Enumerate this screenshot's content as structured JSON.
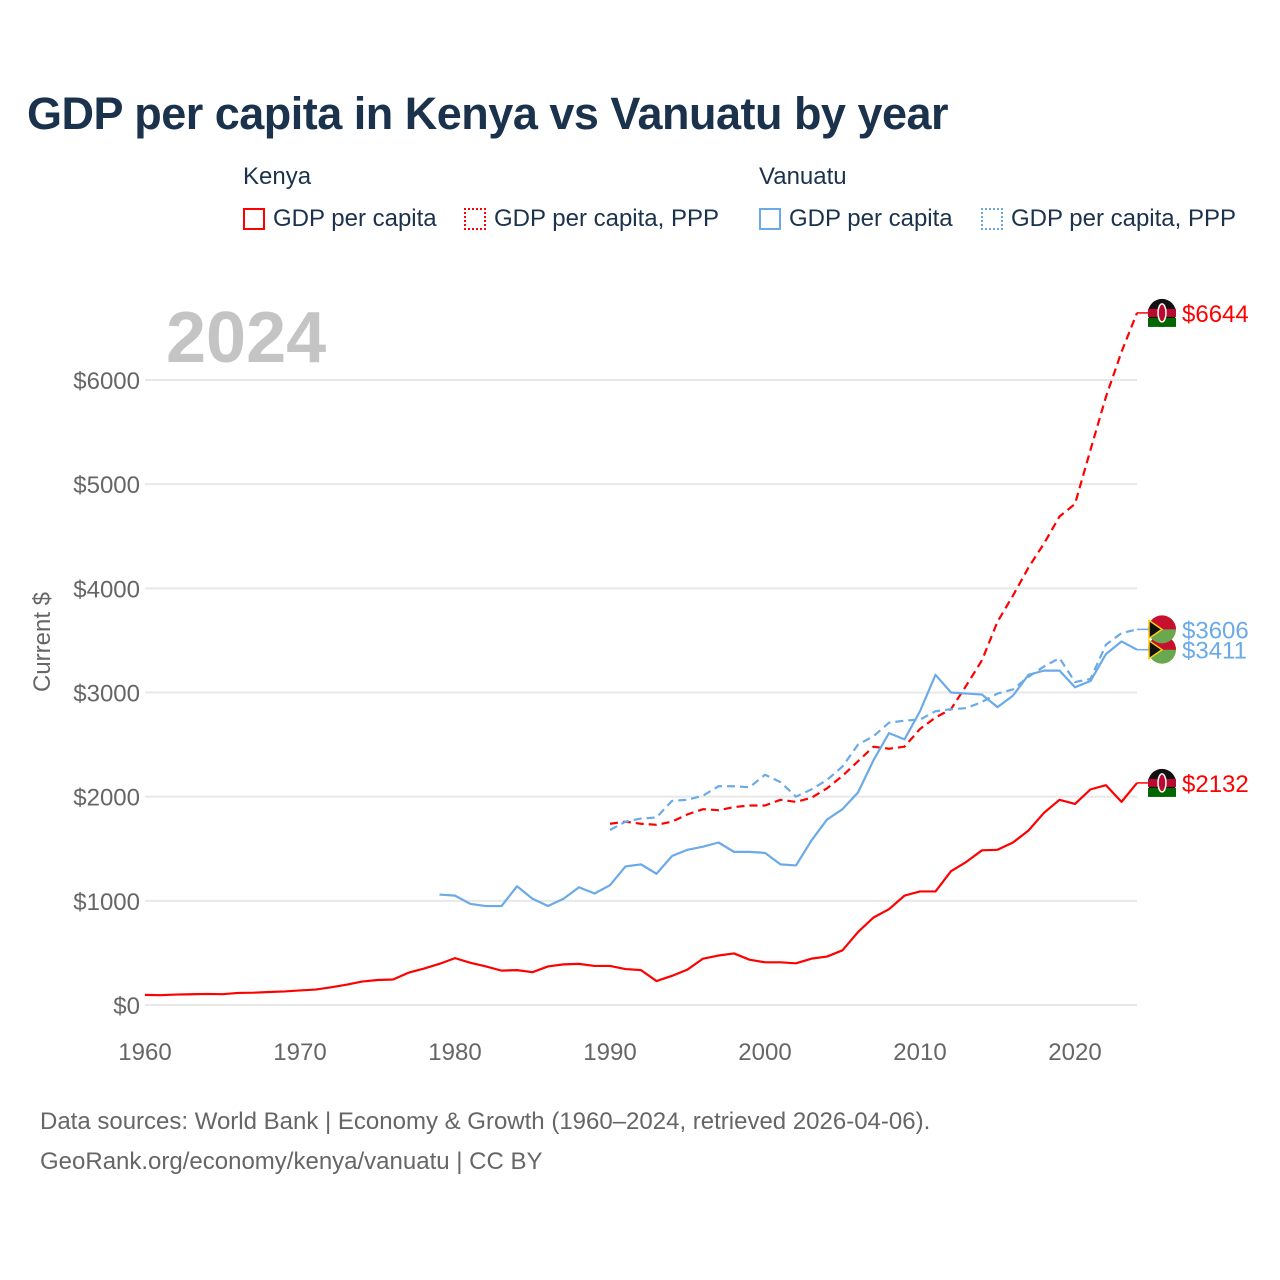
{
  "title": "GDP per capita in Kenya vs Vanuatu by year",
  "legend": {
    "groups": [
      "Kenya",
      "Vanuatu"
    ],
    "items": [
      "GDP per capita",
      "GDP per capita, PPP",
      "GDP per capita",
      "GDP per capita, PPP"
    ]
  },
  "year_label": "2024",
  "footer": {
    "line1": "Data sources: World Bank | Economy & Growth (1960–2024, retrieved 2026-04-06).",
    "line2": "GeoRank.org/economy/kenya/vanuatu | CC BY"
  },
  "colors": {
    "kenya": "#ff0000",
    "vanuatu": "#6aaae8"
  },
  "chart_data": {
    "type": "line",
    "title": "GDP per capita in Kenya vs Vanuatu by year",
    "ylabel": "Current $",
    "xlim": [
      1960,
      2024
    ],
    "ylim": [
      0,
      6000
    ],
    "xticks": [
      1960,
      1970,
      1980,
      1990,
      2000,
      2010,
      2020
    ],
    "yticks": [
      0,
      1000,
      2000,
      3000,
      4000,
      5000,
      6000
    ],
    "ytick_labels": [
      "$0",
      "$1000",
      "$2000",
      "$3000",
      "$4000",
      "$5000",
      "$6000"
    ],
    "grid": true,
    "legend_position": "top",
    "series": [
      {
        "name": "Kenya GDP per capita",
        "country": "kenya",
        "style": "solid",
        "start": 1960,
        "values": [
          97,
          94,
          100,
          103,
          106,
          104,
          116,
          118,
          125,
          130,
          140,
          148,
          170,
          195,
          225,
          240,
          245,
          310,
          350,
          395,
          450,
          405,
          370,
          330,
          335,
          315,
          370,
          390,
          395,
          375,
          375,
          345,
          335,
          230,
          280,
          340,
          445,
          475,
          495,
          435,
          410,
          410,
          400,
          445,
          465,
          525,
          700,
          840,
          920,
          1050,
          1090,
          1090,
          1285,
          1375,
          1485,
          1490,
          1560,
          1675,
          1845,
          1970,
          1930,
          2070,
          2110,
          1950,
          2132
        ],
        "end_label": "$2132"
      },
      {
        "name": "Kenya GDP per capita, PPP",
        "country": "kenya",
        "style": "dashed",
        "start": 1990,
        "values": [
          1740,
          1760,
          1740,
          1730,
          1760,
          1830,
          1880,
          1870,
          1900,
          1915,
          1915,
          1970,
          1950,
          1990,
          2080,
          2200,
          2340,
          2480,
          2460,
          2480,
          2650,
          2760,
          2840,
          3070,
          3310,
          3680,
          3930,
          4200,
          4430,
          4690,
          4810,
          5330,
          5840,
          6270,
          6644
        ],
        "end_label": "$6644"
      },
      {
        "name": "Vanuatu GDP per capita",
        "country": "vanuatu",
        "style": "solid",
        "start": 1979,
        "values": [
          1060,
          1050,
          970,
          950,
          950,
          1140,
          1020,
          950,
          1020,
          1130,
          1070,
          1150,
          1330,
          1350,
          1260,
          1430,
          1490,
          1520,
          1560,
          1470,
          1470,
          1460,
          1350,
          1340,
          1580,
          1780,
          1880,
          2040,
          2350,
          2610,
          2550,
          2820,
          3170,
          3000,
          2990,
          2980,
          2860,
          2970,
          3170,
          3210,
          3210,
          3050,
          3110,
          3370,
          3490,
          3411
        ],
        "end_label": "$3411"
      },
      {
        "name": "Vanuatu GDP per capita, PPP",
        "country": "vanuatu",
        "style": "dashed",
        "start": 1990,
        "values": [
          1680,
          1760,
          1790,
          1800,
          1960,
          1970,
          2010,
          2100,
          2100,
          2090,
          2210,
          2140,
          2000,
          2070,
          2160,
          2290,
          2500,
          2580,
          2710,
          2730,
          2740,
          2820,
          2840,
          2850,
          2910,
          2990,
          3030,
          3150,
          3250,
          3330,
          3100,
          3130,
          3460,
          3570,
          3606
        ],
        "end_label": "$3606"
      }
    ]
  }
}
